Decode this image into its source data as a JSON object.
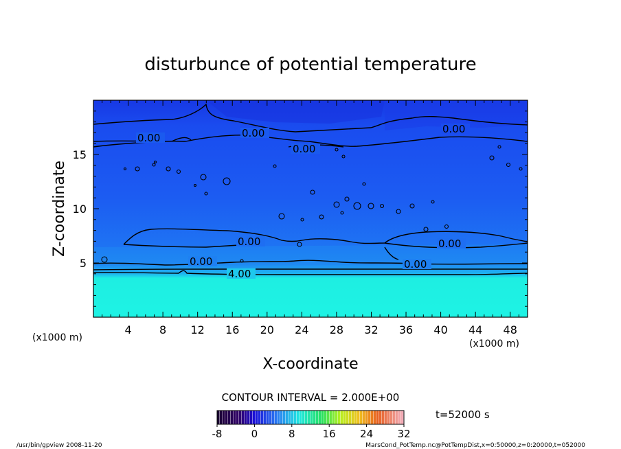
{
  "chart_data": {
    "type": "heatmap",
    "title": "disturbunce of potential temperature",
    "xlabel": "X-coordinate",
    "ylabel": "Z-coordinate",
    "x_unit": "(x1000 m)",
    "z_unit": "(x1000 m)",
    "xlim": [
      0,
      50
    ],
    "ylim": [
      0,
      20
    ],
    "x_ticks": [
      "4",
      "8",
      "12",
      "16",
      "20",
      "24",
      "28",
      "32",
      "36",
      "40",
      "44",
      "48"
    ],
    "y_ticks": [
      "5",
      "10",
      "15"
    ],
    "contour_interval": "CONTOUR INTERVAL = 2.000E+00",
    "time": "t=52000 s",
    "contour_labels": [
      "0.00",
      "0.00",
      "0.00",
      "0.00",
      "0.00",
      "0.00",
      "0.00",
      "0.00",
      "4.00"
    ],
    "colorbar": {
      "range": [
        -8,
        32
      ],
      "tick_labels": [
        "-8",
        "0",
        "8",
        "16",
        "24",
        "32"
      ]
    },
    "approx_field": [
      {
        "z_range": [
          0,
          4
        ],
        "value": 6
      },
      {
        "z_range": [
          4,
          5
        ],
        "value": 2
      },
      {
        "z_range": [
          5,
          17
        ],
        "value": -1
      },
      {
        "z_range": [
          17,
          20
        ],
        "value": -2
      }
    ]
  },
  "footer": {
    "left": "/usr/bin/gpview   2008-11-20",
    "right": "MarsCond_PotTemp.nc@PotTempDist,x=0:50000,z=0:20000,t=052000"
  },
  "colors": {
    "low_layer": "#1ef2e3",
    "mid_band": "#1e8cf0",
    "upper": "#1d5ff0",
    "top_dark": "#1a3ae6",
    "contour": "#000000"
  }
}
